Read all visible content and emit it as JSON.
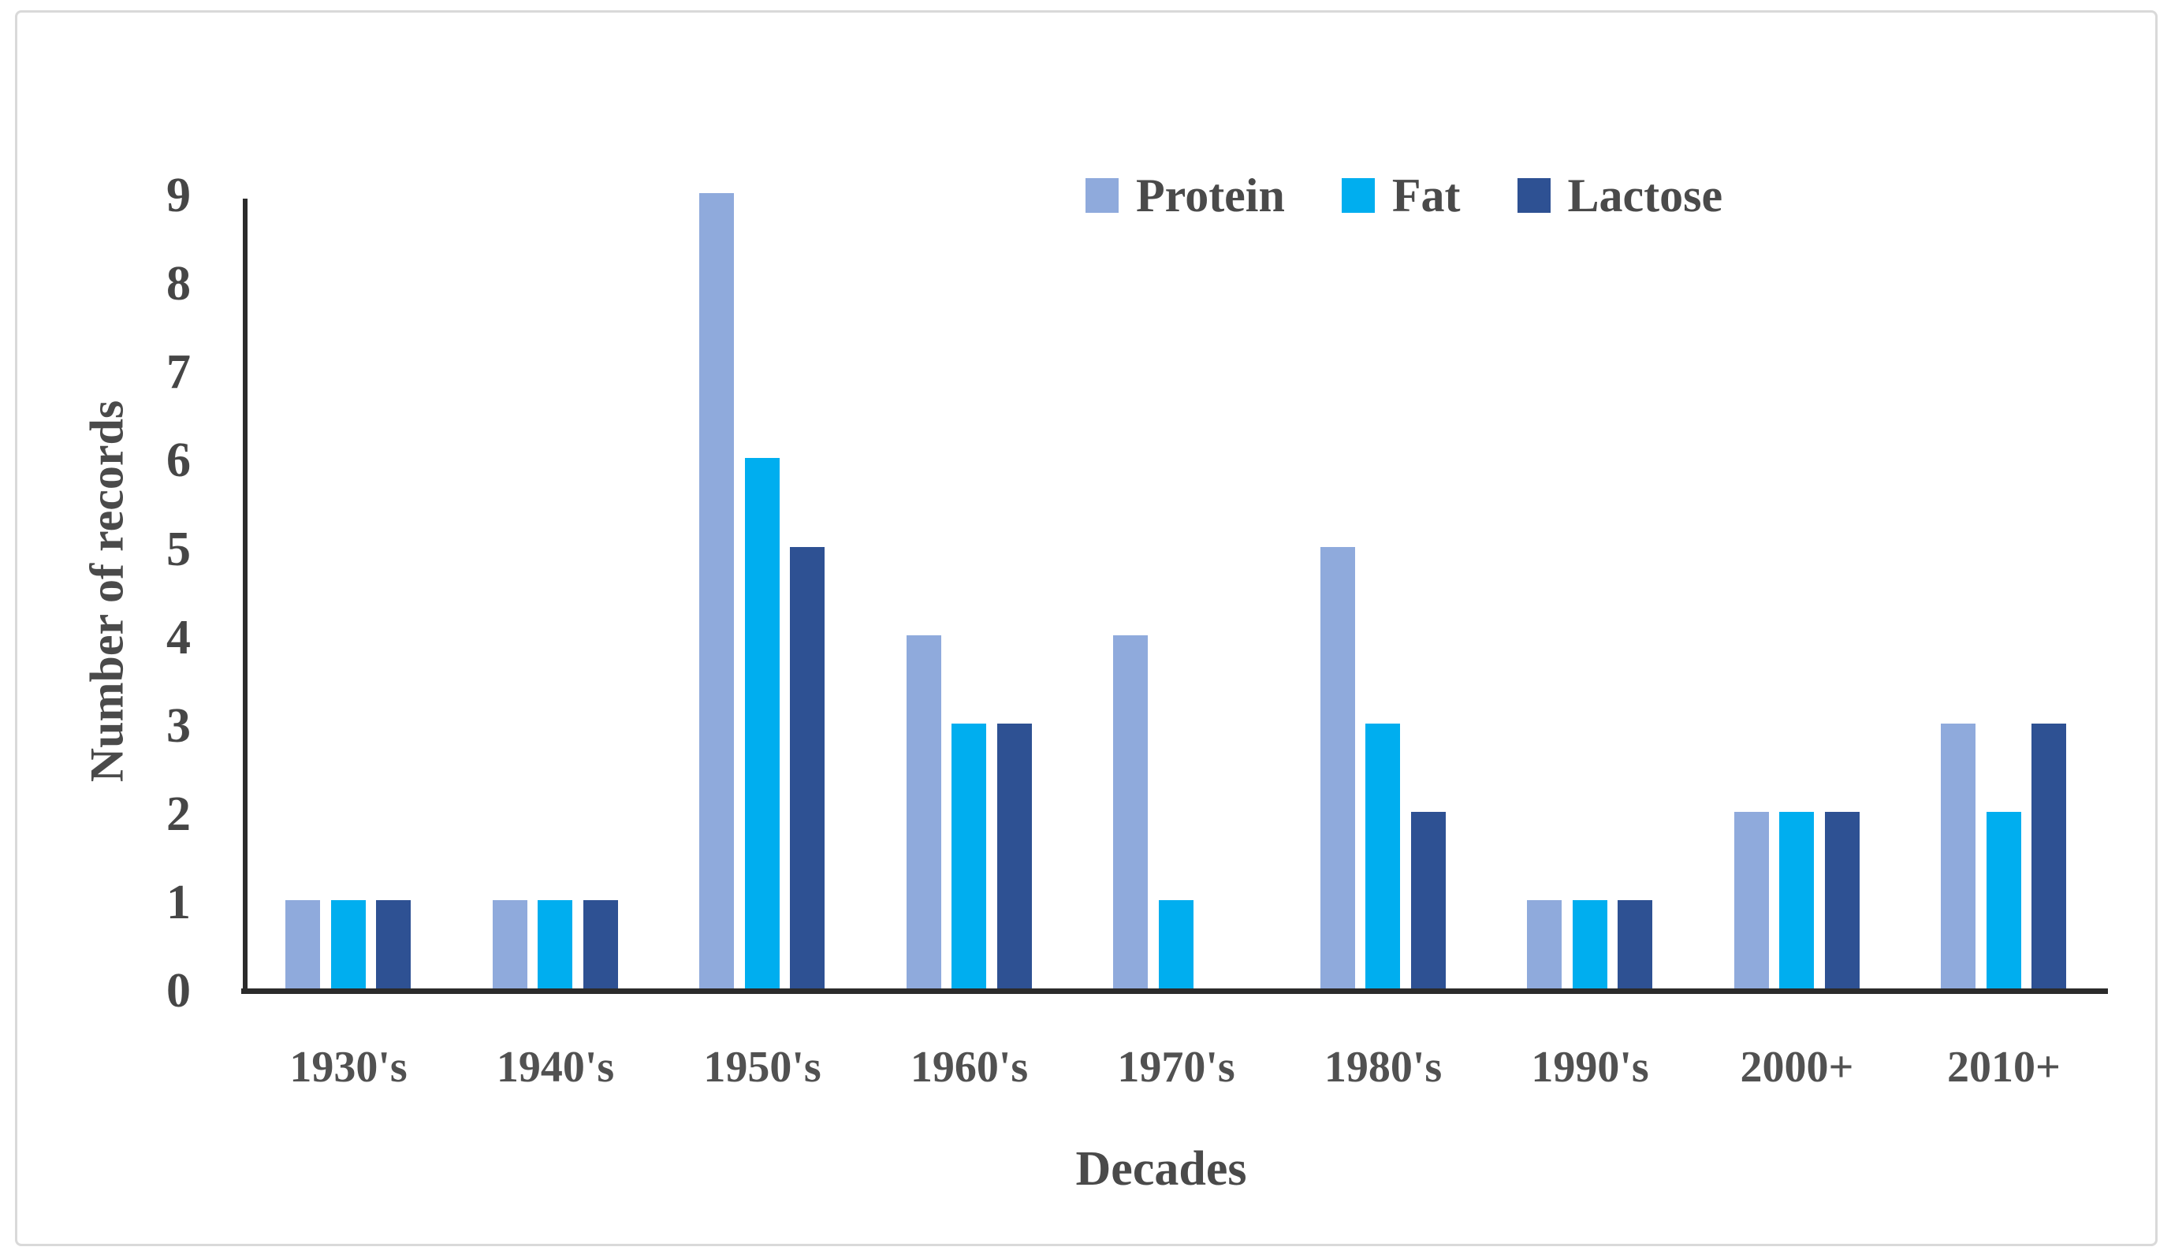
{
  "figure": {
    "kind": "grouped-bar-chart-figure"
  },
  "chart_data": {
    "type": "bar",
    "title": "",
    "categories": [
      "1930's",
      "1940's",
      "1950's",
      "1960's",
      "1970's",
      "1980's",
      "1990's",
      "2000+",
      "2010+"
    ],
    "series": [
      {
        "name": "Protein",
        "color": "#8FAADC",
        "values": [
          1,
          1,
          9,
          4,
          4,
          5,
          1,
          2,
          3
        ]
      },
      {
        "name": "Fat",
        "color": "#00AEEF",
        "values": [
          1,
          1,
          6,
          3,
          1,
          3,
          1,
          2,
          2
        ]
      },
      {
        "name": "Lactose",
        "color": "#2E5193",
        "values": [
          1,
          1,
          5,
          3,
          0,
          2,
          1,
          2,
          3
        ]
      }
    ],
    "xlabel": "Decades",
    "ylabel": "Number of records",
    "ylim": [
      0,
      9
    ],
    "ytick_step": 1,
    "yticks": [
      0,
      1,
      2,
      3,
      4,
      5,
      6,
      7,
      8,
      9
    ],
    "grid": false,
    "legend_position": "top-right"
  },
  "colors": {
    "axis": "#2B2B2B",
    "text": "#4A4A4A",
    "frame_border": "#D9D9D9",
    "background": "#FFFFFF"
  }
}
